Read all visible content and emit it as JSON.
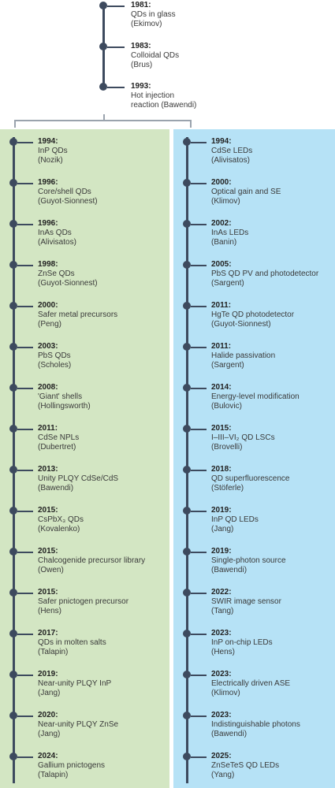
{
  "top_timeline": [
    {
      "year": "1981:",
      "text": "QDs in glass",
      "author": "(Ekimov)"
    },
    {
      "year": "1983:",
      "text": "Colloidal QDs",
      "author": "(Brus)"
    },
    {
      "year": "1993:",
      "text": "Hot injection",
      "text2": "reaction (Bawendi)"
    }
  ],
  "left_timeline": [
    {
      "year": "1994:",
      "text": "InP QDs",
      "author": "(Nozik)"
    },
    {
      "year": "1996:",
      "text": "Core/shell QDs",
      "author": "(Guyot-Sionnest)"
    },
    {
      "year": "1996:",
      "text": "InAs QDs",
      "author": "(Alivisatos)"
    },
    {
      "year": "1998:",
      "text": "ZnSe QDs",
      "author": "(Guyot-Sionnest)"
    },
    {
      "year": "2000:",
      "text": "Safer metal precursors",
      "author": "(Peng)"
    },
    {
      "year": "2003:",
      "text": "PbS QDs",
      "author": "(Scholes)"
    },
    {
      "year": "2008:",
      "text": "'Giant' shells",
      "author": "(Hollingsworth)"
    },
    {
      "year": "2011:",
      "text": "CdSe NPLs",
      "author": "(Dubertret)"
    },
    {
      "year": "2013:",
      "text": "Unity PLQY CdSe/CdS",
      "author": "(Bawendi)"
    },
    {
      "year": "2015:",
      "text": "CsPbX₃ QDs",
      "author": "(Kovalenko)"
    },
    {
      "year": "2015:",
      "text": "Chalcogenide precursor library",
      "author": "(Owen)"
    },
    {
      "year": "2015:",
      "text": "Safer pnictogen precursor",
      "author": "(Hens)"
    },
    {
      "year": "2017:",
      "text": "QDs in molten salts",
      "author": "(Talapin)"
    },
    {
      "year": "2019:",
      "text": "Near-unity PLQY InP",
      "author": "(Jang)"
    },
    {
      "year": "2020:",
      "text": "Near-unity PLQY ZnSe",
      "author": "(Jang)"
    },
    {
      "year": "2024:",
      "text": "Gallium pnictogens",
      "author": "(Talapin)"
    }
  ],
  "right_timeline": [
    {
      "year": "1994:",
      "text": "CdSe LEDs",
      "author": "(Alivisatos)"
    },
    {
      "year": "2000:",
      "text": "Optical gain and SE",
      "author": "(Klimov)"
    },
    {
      "year": "2002:",
      "text": "InAs LEDs",
      "author": "(Banin)"
    },
    {
      "year": "2005:",
      "text": "PbS QD PV and photodetector",
      "author": "(Sargent)"
    },
    {
      "year": "2011:",
      "text": "HgTe QD photodetector",
      "author": "(Guyot-Sionnest)"
    },
    {
      "year": "2011:",
      "text": "Halide passivation",
      "author": "(Sargent)"
    },
    {
      "year": "2014:",
      "text": "Energy-level modification",
      "author": "(Bulovic)"
    },
    {
      "year": "2015:",
      "text": "I–III–VI₂ QD LSCs",
      "author": "(Brovelli)"
    },
    {
      "year": "2018:",
      "text": "QD superfluorescence",
      "author": "(Stöferle)"
    },
    {
      "year": "2019:",
      "text": "InP QD LEDs",
      "author": "(Jang)"
    },
    {
      "year": "2019:",
      "text": "Single-photon source",
      "author": "(Bawendi)"
    },
    {
      "year": "2022:",
      "text": "SWIR image sensor",
      "author": "(Tang)"
    },
    {
      "year": "2023:",
      "text": "InP on-chip LEDs",
      "author": "(Hens)"
    },
    {
      "year": "2023:",
      "text": "Electrically driven ASE",
      "author": "(Klimov)"
    },
    {
      "year": "2023:",
      "text": "Indistinguishable photons",
      "author": "(Bawendi)"
    },
    {
      "year": "2025:",
      "text": "ZnSeTeS QD LEDs",
      "author": "(Yang)"
    }
  ],
  "colors": {
    "left_panel": "#d3e6c3",
    "right_panel": "#b6e2f6",
    "timeline": "#3d4a5e"
  }
}
